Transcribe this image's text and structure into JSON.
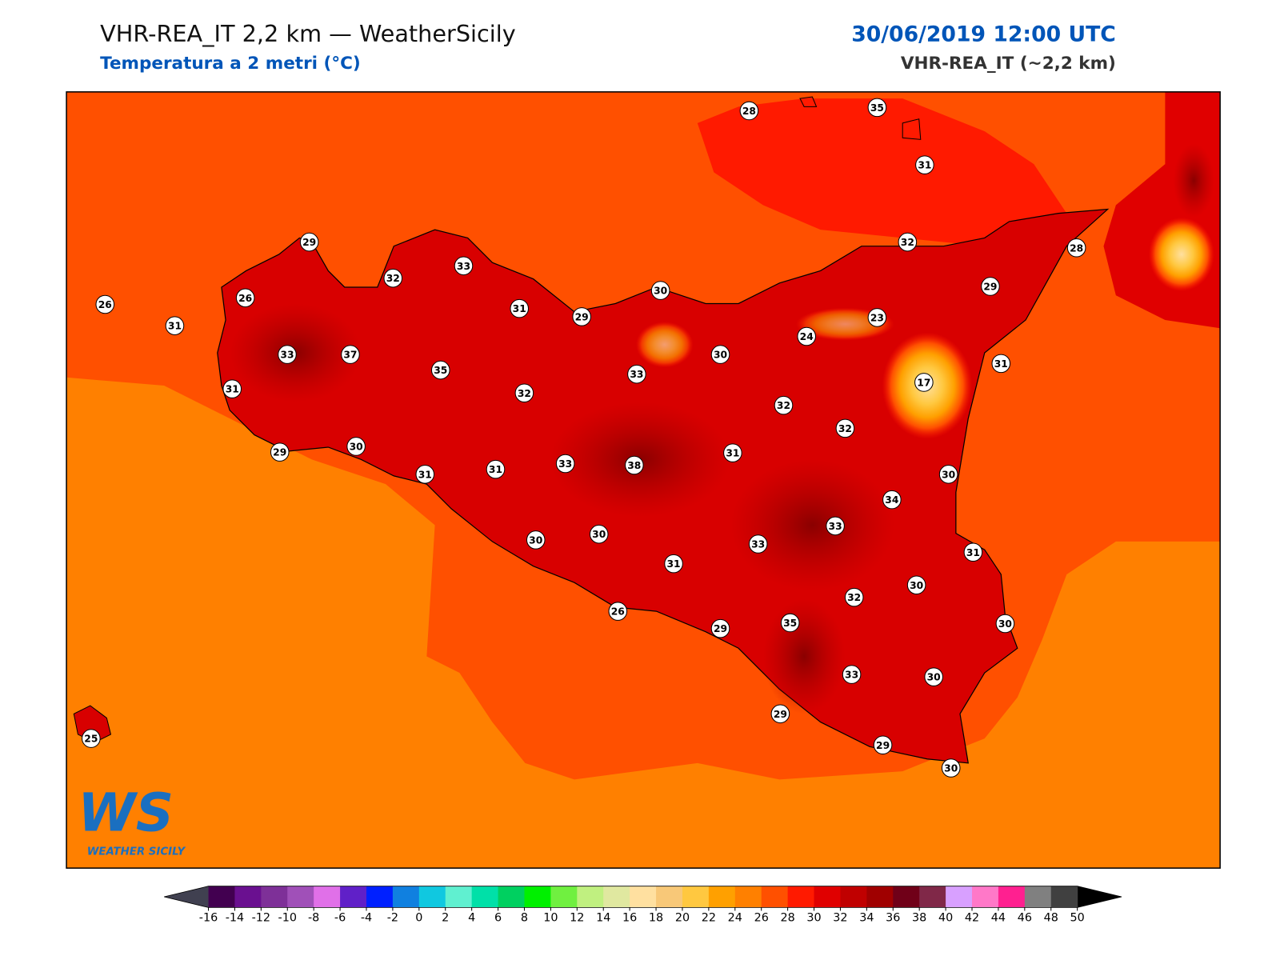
{
  "header": {
    "title": "VHR-REA_IT 2,2 km — WeatherSicily",
    "subtitle": "Temperatura a 2 metri (°C)",
    "date": "30/06/2019 12:00 UTC",
    "model": "VHR-REA_IT (~2,2 km)"
  },
  "logo": {
    "mark": "WS",
    "name": "WEATHER SICILY"
  },
  "stations": [
    28,
    35,
    31,
    29,
    33,
    32,
    32,
    28,
    26,
    26,
    30,
    29,
    31,
    31,
    29,
    23,
    24,
    33,
    37,
    35,
    30,
    33,
    31,
    17,
    31,
    32,
    32,
    32,
    29,
    30,
    31,
    31,
    33,
    38,
    31,
    30,
    34,
    33,
    30,
    30,
    33,
    31,
    31,
    30,
    32,
    26,
    29,
    35,
    30,
    33,
    30,
    29,
    29,
    30,
    25
  ],
  "colorbar": {
    "ticks": [
      -16,
      -14,
      -12,
      -10,
      -8,
      -6,
      -4,
      -2,
      0,
      2,
      4,
      6,
      8,
      10,
      12,
      14,
      16,
      18,
      20,
      22,
      24,
      26,
      28,
      30,
      32,
      34,
      36,
      38,
      40,
      42,
      44,
      46,
      48,
      50
    ],
    "colors": [
      "#420050",
      "#6a1090",
      "#7e3098",
      "#a050b8",
      "#e070e8",
      "#6020c8",
      "#0020ff",
      "#1080e0",
      "#10c8e0",
      "#60f0d0",
      "#00e0a8",
      "#00d060",
      "#00f000",
      "#70f040",
      "#c0f080",
      "#e0e8a0",
      "#ffe0a0",
      "#f8c878",
      "#ffc840",
      "#ffa000",
      "#ff8000",
      "#ff5000",
      "#ff1a00",
      "#e00000",
      "#c00000",
      "#a00000",
      "#700018",
      "#802848",
      "#d8a0ff",
      "#ff78c8",
      "#ff2090",
      "#808080",
      "#404040"
    ],
    "under_color": "#404050",
    "over_color": "#000000"
  }
}
